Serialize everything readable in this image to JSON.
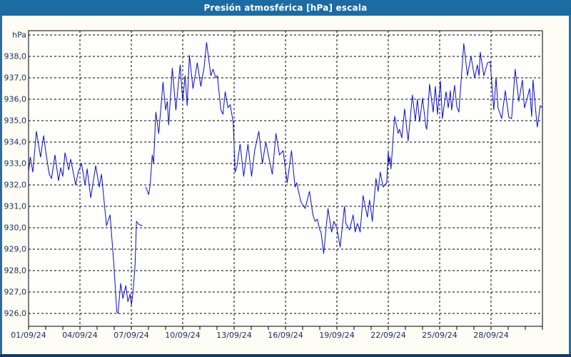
{
  "window": {
    "title": "Presión atmosférica [hPa] escala"
  },
  "colors": {
    "titlebar_bg": "#1d6ba3",
    "frame_side": "#2d6d9e",
    "frame_bottom": "#16395e",
    "page_bg": "#fdfdf6",
    "plot_bg": "#fefefc",
    "grid": "#000000",
    "axis_border": "#000000",
    "label_text": "#1b2a5a",
    "line": "#0a0ac8"
  },
  "chart_data": {
    "type": "line",
    "title": "Presión atmosférica [hPa] escala",
    "xlabel": "",
    "ylabel": "hPa",
    "grid": "dashed",
    "legend": "none",
    "x_axis": {
      "range_days": [
        0,
        30
      ],
      "tick_days": [
        0,
        3,
        6,
        9,
        12,
        15,
        18,
        21,
        24,
        27
      ],
      "tick_labels": [
        "01/09/24",
        "04/09/24",
        "07/09/24",
        "10/09/24",
        "13/09/24",
        "16/09/24",
        "19/09/24",
        "22/09/24",
        "25/09/24",
        "28/09/24"
      ],
      "minor_tick_interval_days": 1
    },
    "y_axis": {
      "unit_label": "hPa",
      "range": [
        925.4,
        939.2
      ],
      "tick_values": [
        938,
        937,
        936,
        935,
        934,
        933,
        932,
        931,
        930,
        929,
        928,
        927,
        926
      ],
      "tick_labels": [
        "938,0",
        "937,0",
        "936,0",
        "935,0",
        "934,0",
        "933,0",
        "932,0",
        "931,0",
        "930,0",
        "929,0",
        "928,0",
        "927,0",
        "926,0"
      ],
      "gridline_values": [
        939,
        938,
        937,
        936,
        935,
        934,
        933,
        932,
        931,
        930,
        929,
        928,
        927,
        926
      ]
    },
    "series": [
      {
        "name": "Presión atmosférica [hPa]",
        "color": "#0a0ac8",
        "points": [
          [
            0.0,
            932.6
          ],
          [
            0.1,
            933.3
          ],
          [
            0.25,
            932.6
          ],
          [
            0.46,
            934.5
          ],
          [
            0.7,
            933.3
          ],
          [
            0.88,
            934.3
          ],
          [
            1.05,
            933.3
          ],
          [
            1.21,
            932.5
          ],
          [
            1.34,
            932.3
          ],
          [
            1.54,
            933.4
          ],
          [
            1.75,
            932.2
          ],
          [
            1.88,
            932.8
          ],
          [
            2.0,
            932.4
          ],
          [
            2.13,
            933.5
          ],
          [
            2.34,
            932.7
          ],
          [
            2.46,
            933.2
          ],
          [
            2.75,
            932.0
          ],
          [
            2.9,
            932.6
          ],
          [
            3.09,
            933.0
          ],
          [
            3.3,
            932.0
          ],
          [
            3.42,
            932.75
          ],
          [
            3.63,
            931.4
          ],
          [
            3.92,
            932.9
          ],
          [
            4.13,
            931.9
          ],
          [
            4.26,
            932.5
          ],
          [
            4.55,
            930.1
          ],
          [
            4.76,
            930.6
          ],
          [
            4.97,
            928.4
          ],
          [
            5.15,
            926.1
          ],
          [
            5.22,
            926.0
          ],
          [
            5.38,
            927.4
          ],
          [
            5.51,
            926.7
          ],
          [
            5.68,
            927.3
          ],
          [
            5.8,
            926.55
          ],
          [
            5.93,
            926.9
          ],
          [
            6.01,
            926.4
          ],
          [
            6.1,
            927.0
          ],
          [
            6.22,
            928.3
          ],
          [
            6.3,
            930.3
          ],
          [
            6.45,
            930.15
          ],
          [
            6.63,
            930.1
          ],
          null,
          [
            6.85,
            931.9
          ],
          [
            7.01,
            931.55
          ],
          [
            7.1,
            932.0
          ],
          [
            7.22,
            933.4
          ],
          [
            7.3,
            933.0
          ],
          [
            7.43,
            935.4
          ],
          [
            7.6,
            934.4
          ],
          [
            7.85,
            936.8
          ],
          [
            8.0,
            935.5
          ],
          [
            8.1,
            935.9
          ],
          [
            8.18,
            934.8
          ],
          [
            8.39,
            937.45
          ],
          [
            8.6,
            935.5
          ],
          [
            8.85,
            937.6
          ],
          [
            9.0,
            935.9
          ],
          [
            9.14,
            937.1
          ],
          [
            9.26,
            935.7
          ],
          [
            9.39,
            938.05
          ],
          [
            9.6,
            936.5
          ],
          [
            9.85,
            937.7
          ],
          [
            10.06,
            936.6
          ],
          [
            10.25,
            937.5
          ],
          [
            10.39,
            938.65
          ],
          [
            10.64,
            937.1
          ],
          [
            10.77,
            937.4
          ],
          [
            10.93,
            937.0
          ],
          [
            11.02,
            937.1
          ],
          [
            11.23,
            935.5
          ],
          [
            11.35,
            935.3
          ],
          [
            11.48,
            936.35
          ],
          [
            11.64,
            935.6
          ],
          [
            11.77,
            935.75
          ],
          [
            11.95,
            934.9
          ],
          [
            12.06,
            932.6
          ],
          [
            12.15,
            932.8
          ],
          [
            12.35,
            933.9
          ],
          [
            12.56,
            932.4
          ],
          [
            12.81,
            933.9
          ],
          [
            13.02,
            932.4
          ],
          [
            13.2,
            933.6
          ],
          [
            13.44,
            934.5
          ],
          [
            13.65,
            933.0
          ],
          [
            13.85,
            934.0
          ],
          [
            14.05,
            933.2
          ],
          [
            14.23,
            932.5
          ],
          [
            14.44,
            934.4
          ],
          [
            14.65,
            933.4
          ],
          [
            14.86,
            933.6
          ],
          [
            15.02,
            932.6
          ],
          [
            15.1,
            932.1
          ],
          [
            15.35,
            933.6
          ],
          [
            15.56,
            931.9
          ],
          [
            15.65,
            932.1
          ],
          [
            15.9,
            931.2
          ],
          [
            16.15,
            930.9
          ],
          [
            16.4,
            931.7
          ],
          [
            16.6,
            930.6
          ],
          [
            16.73,
            930.3
          ],
          [
            16.86,
            930.4
          ],
          [
            17.0,
            929.9
          ],
          [
            17.07,
            929.8
          ],
          [
            17.23,
            928.8
          ],
          [
            17.48,
            930.9
          ],
          [
            17.69,
            929.8
          ],
          [
            17.82,
            930.3
          ],
          [
            17.99,
            930.0
          ],
          [
            18.19,
            929.1
          ],
          [
            18.44,
            931.0
          ],
          [
            18.53,
            930.2
          ],
          [
            18.74,
            929.9
          ],
          [
            18.95,
            930.6
          ],
          [
            19.07,
            929.8
          ],
          [
            19.2,
            930.2
          ],
          [
            19.36,
            929.8
          ],
          [
            19.53,
            931.5
          ],
          [
            19.78,
            930.5
          ],
          [
            19.91,
            931.3
          ],
          [
            20.07,
            930.3
          ],
          [
            20.28,
            932.3
          ],
          [
            20.41,
            931.7
          ],
          [
            20.53,
            932.6
          ],
          [
            20.7,
            931.9
          ],
          [
            20.91,
            932.1
          ],
          [
            21.0,
            933.6
          ],
          [
            21.04,
            933.0
          ],
          [
            21.1,
            933.3
          ],
          [
            21.16,
            932.75
          ],
          [
            21.37,
            935.2
          ],
          [
            21.58,
            934.4
          ],
          [
            21.66,
            934.6
          ],
          [
            21.79,
            934.2
          ],
          [
            21.95,
            935.55
          ],
          [
            22.16,
            934.05
          ],
          [
            22.41,
            936.2
          ],
          [
            22.58,
            935.0
          ],
          [
            22.7,
            936.0
          ],
          [
            22.83,
            934.95
          ],
          [
            23.0,
            936.05
          ],
          [
            23.2,
            934.7
          ],
          [
            23.25,
            934.6
          ],
          [
            23.41,
            936.7
          ],
          [
            23.62,
            935.4
          ],
          [
            23.75,
            936.6
          ],
          [
            23.87,
            935.3
          ],
          [
            24.04,
            936.85
          ],
          [
            24.16,
            935.1
          ],
          [
            24.37,
            936.35
          ],
          [
            24.5,
            935.6
          ],
          [
            24.62,
            936.4
          ],
          [
            24.7,
            935.5
          ],
          [
            24.87,
            936.65
          ],
          [
            25.0,
            935.65
          ],
          [
            25.12,
            935.4
          ],
          [
            25.41,
            938.6
          ],
          [
            25.62,
            937.1
          ],
          [
            25.83,
            938.0
          ],
          [
            26.04,
            937.0
          ],
          [
            26.2,
            937.6
          ],
          [
            26.3,
            937.1
          ],
          [
            26.37,
            938.2
          ],
          [
            26.58,
            937.1
          ],
          [
            26.79,
            937.7
          ],
          [
            26.95,
            937.75
          ],
          [
            27.08,
            936.4
          ],
          [
            27.16,
            935.5
          ],
          [
            27.29,
            937.0
          ],
          [
            27.41,
            935.6
          ],
          [
            27.62,
            935.1
          ],
          [
            27.83,
            936.4
          ],
          [
            28.04,
            935.15
          ],
          [
            28.2,
            935.1
          ],
          [
            28.41,
            937.4
          ],
          [
            28.62,
            935.9
          ],
          [
            28.83,
            936.9
          ],
          [
            28.95,
            935.6
          ],
          [
            29.1,
            936.0
          ],
          [
            29.25,
            936.5
          ],
          [
            29.37,
            935.2
          ],
          [
            29.45,
            936.9
          ],
          [
            29.66,
            935.0
          ],
          [
            29.7,
            934.7
          ],
          [
            29.87,
            935.7
          ],
          [
            30.0,
            935.6
          ]
        ]
      }
    ]
  }
}
